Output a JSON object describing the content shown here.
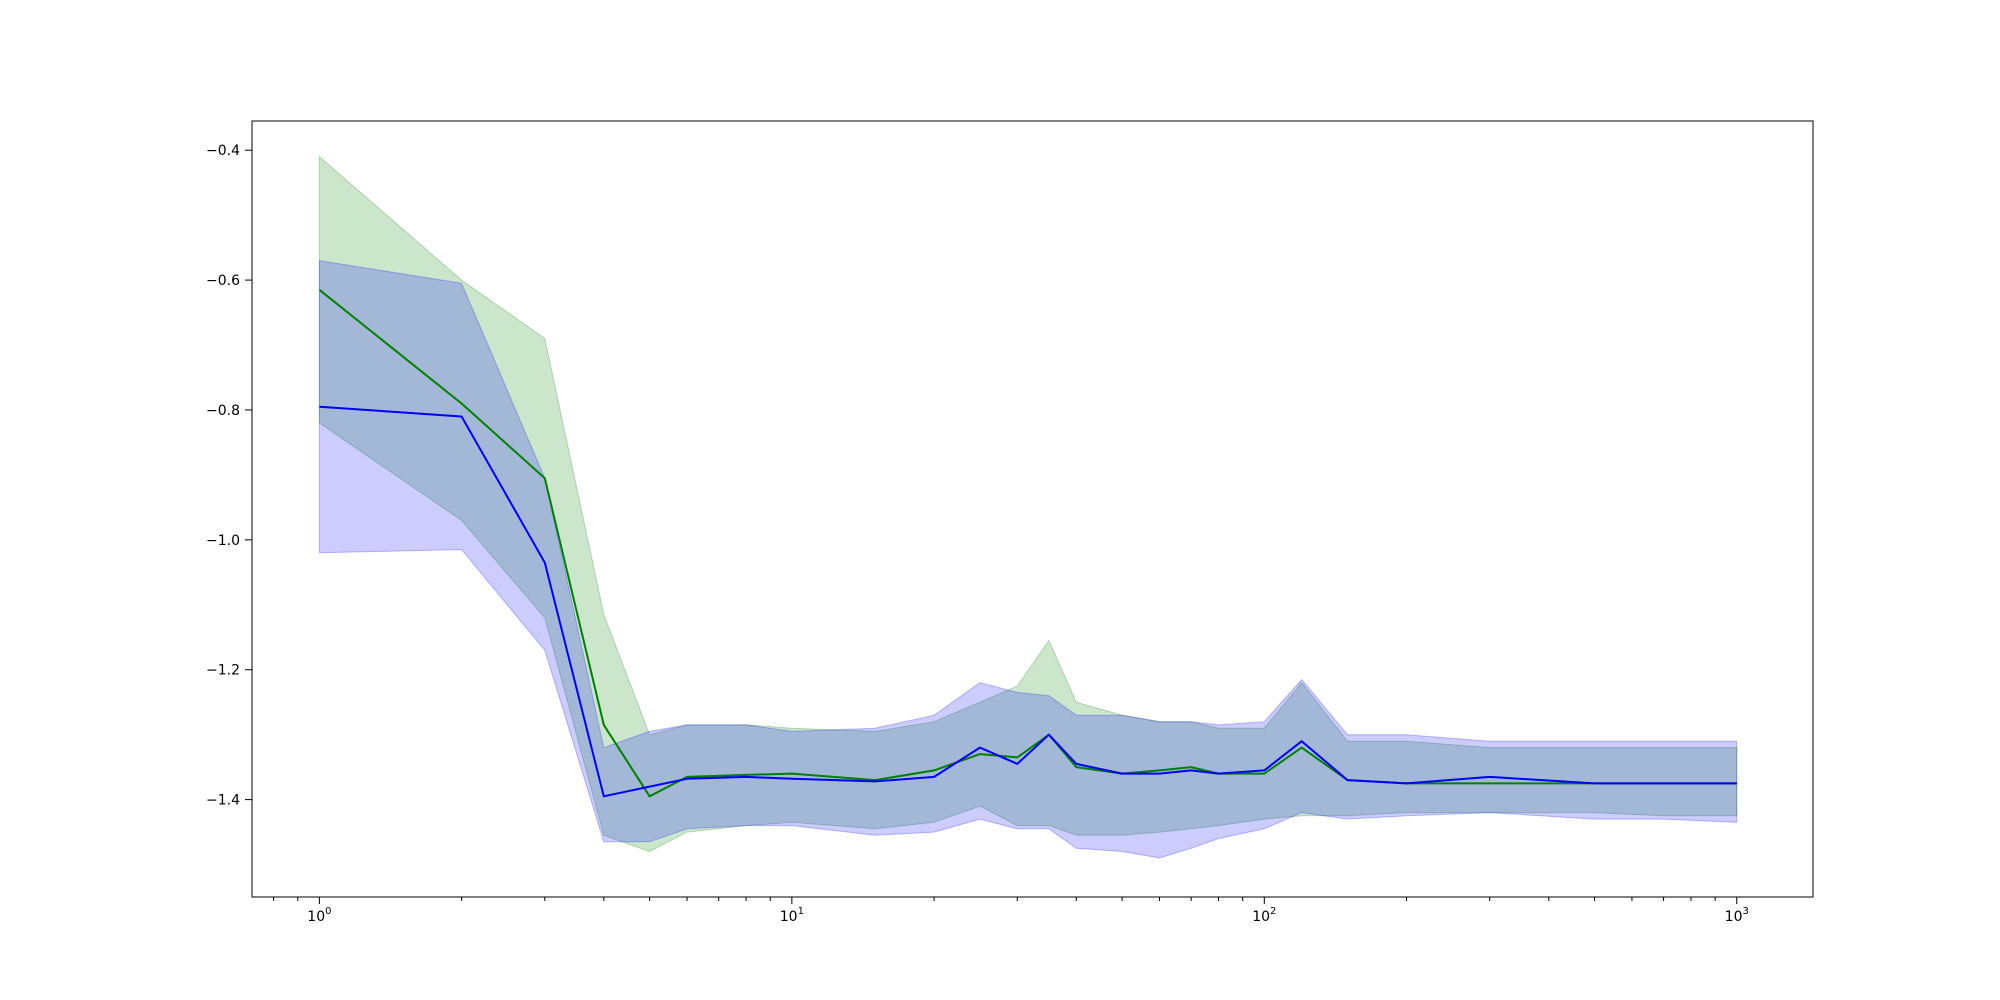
{
  "chart_data": {
    "type": "line",
    "title": "",
    "xlabel": "",
    "ylabel": "",
    "x_scale": "log",
    "xlim": [
      0.72,
      1450
    ],
    "ylim": [
      -1.55,
      -0.355
    ],
    "grid": false,
    "legend": null,
    "x_ticks": [
      {
        "value": 1,
        "base": "10",
        "exp": "0"
      },
      {
        "value": 10,
        "base": "10",
        "exp": "1"
      },
      {
        "value": 100,
        "base": "10",
        "exp": "2"
      },
      {
        "value": 1000,
        "base": "10",
        "exp": "3"
      }
    ],
    "y_ticks": [
      {
        "value": -0.4,
        "label": "−0.4"
      },
      {
        "value": -0.6,
        "label": "−0.6"
      },
      {
        "value": -0.8,
        "label": "−0.8"
      },
      {
        "value": -1.0,
        "label": "−1.0"
      },
      {
        "value": -1.2,
        "label": "−1.2"
      },
      {
        "value": -1.4,
        "label": "−1.4"
      }
    ],
    "series": [
      {
        "color": "#008000",
        "band_color": "#008000",
        "band_opacity": 0.2,
        "x": [
          1,
          2,
          3,
          4,
          5,
          6,
          8,
          10,
          15,
          20,
          25,
          30,
          35,
          40,
          50,
          60,
          70,
          80,
          100,
          120,
          150,
          200,
          300,
          500,
          700,
          1000
        ],
        "y": [
          -0.615,
          -0.79,
          -0.905,
          -1.285,
          -1.395,
          -1.365,
          -1.362,
          -1.36,
          -1.37,
          -1.355,
          -1.33,
          -1.335,
          -1.3,
          -1.35,
          -1.36,
          -1.355,
          -1.35,
          -1.36,
          -1.36,
          -1.32,
          -1.37,
          -1.375,
          -1.375,
          -1.375,
          -1.375,
          -1.375
        ],
        "upper": [
          -0.41,
          -0.6,
          -0.69,
          -1.115,
          -1.3,
          -1.285,
          -1.285,
          -1.29,
          -1.295,
          -1.28,
          -1.25,
          -1.225,
          -1.155,
          -1.25,
          -1.27,
          -1.28,
          -1.28,
          -1.29,
          -1.29,
          -1.22,
          -1.31,
          -1.31,
          -1.32,
          -1.32,
          -1.32,
          -1.32
        ],
        "lower": [
          -0.82,
          -0.97,
          -1.12,
          -1.455,
          -1.48,
          -1.45,
          -1.44,
          -1.435,
          -1.445,
          -1.435,
          -1.41,
          -1.44,
          -1.44,
          -1.455,
          -1.455,
          -1.45,
          -1.445,
          -1.44,
          -1.43,
          -1.425,
          -1.425,
          -1.42,
          -1.42,
          -1.42,
          -1.425,
          -1.425
        ]
      },
      {
        "color": "#0000ff",
        "band_color": "#0000ff",
        "band_opacity": 0.2,
        "x": [
          1,
          2,
          3,
          4,
          5,
          6,
          8,
          10,
          15,
          20,
          25,
          30,
          35,
          40,
          50,
          60,
          70,
          80,
          100,
          120,
          150,
          200,
          300,
          500,
          700,
          1000
        ],
        "y": [
          -0.795,
          -0.81,
          -1.035,
          -1.395,
          -1.38,
          -1.368,
          -1.365,
          -1.368,
          -1.372,
          -1.365,
          -1.32,
          -1.345,
          -1.3,
          -1.345,
          -1.36,
          -1.36,
          -1.355,
          -1.36,
          -1.355,
          -1.31,
          -1.37,
          -1.375,
          -1.365,
          -1.375,
          -1.375,
          -1.375
        ],
        "upper": [
          -0.57,
          -0.605,
          -0.905,
          -1.32,
          -1.295,
          -1.285,
          -1.285,
          -1.295,
          -1.29,
          -1.27,
          -1.22,
          -1.235,
          -1.24,
          -1.27,
          -1.27,
          -1.28,
          -1.28,
          -1.285,
          -1.28,
          -1.215,
          -1.3,
          -1.3,
          -1.31,
          -1.31,
          -1.31,
          -1.31
        ],
        "lower": [
          -1.02,
          -1.015,
          -1.17,
          -1.465,
          -1.465,
          -1.445,
          -1.44,
          -1.44,
          -1.455,
          -1.45,
          -1.43,
          -1.445,
          -1.445,
          -1.475,
          -1.48,
          -1.49,
          -1.475,
          -1.46,
          -1.445,
          -1.42,
          -1.43,
          -1.425,
          -1.42,
          -1.43,
          -1.43,
          -1.435
        ]
      }
    ]
  }
}
